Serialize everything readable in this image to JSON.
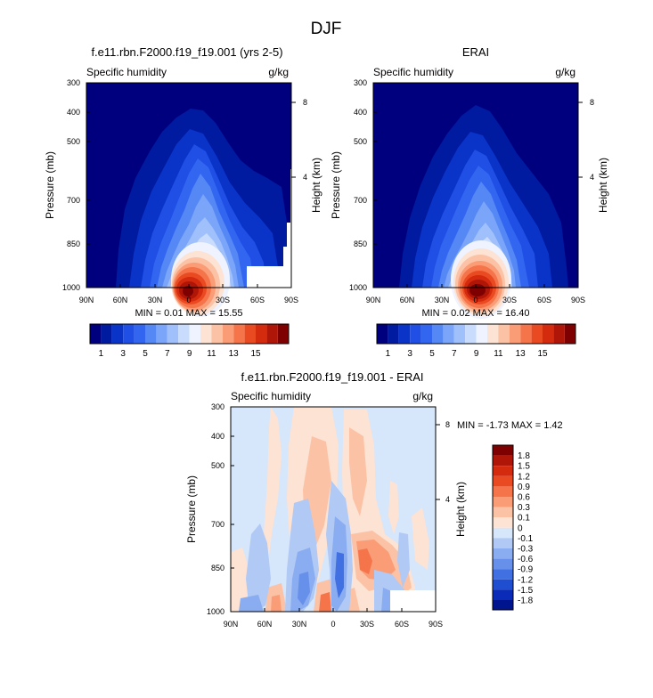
{
  "figure": {
    "title": "DJF"
  },
  "chart_data": [
    {
      "type": "heatmap",
      "title": "f.e11.rbn.F2000.f19_f19.001 (yrs 2-5)",
      "subtitle_left": "Specific humidity",
      "subtitle_right": "g/kg",
      "ylabel": "Pressure (mb)",
      "ylabel_right": "Height (km)",
      "x_ticks": [
        "90N",
        "60N",
        "30N",
        "0",
        "30S",
        "60S",
        "90S"
      ],
      "y_ticks": [
        "300",
        "400",
        "500",
        "700",
        "850",
        "1000"
      ],
      "y_right_ticks": [
        "8",
        "4"
      ],
      "ylim": [
        1000,
        300
      ],
      "stats": "MIN =  0.01  MAX = 15.55",
      "levels": [
        1,
        2,
        3,
        4,
        5,
        6,
        7,
        8,
        9,
        10,
        11,
        12,
        13,
        14,
        15
      ],
      "colorbar_labels": [
        "1",
        "3",
        "5",
        "7",
        "9",
        "11",
        "13",
        "15"
      ],
      "colors": [
        "#00007f",
        "#001aa0",
        "#0a33c8",
        "#1f4fe5",
        "#3366f0",
        "#5588f5",
        "#7aa5f8",
        "#a0c0fb",
        "#cadcfd",
        "#eef3ff",
        "#fde3d4",
        "#fcc2a6",
        "#fa9c76",
        "#f5744a",
        "#ea4a22",
        "#d42a0e",
        "#b01607",
        "#7f0000"
      ]
    },
    {
      "type": "heatmap",
      "title": "ERAI",
      "subtitle_left": "Specific humidity",
      "subtitle_right": "g/kg",
      "ylabel": "Pressure (mb)",
      "ylabel_right": "Height (km)",
      "x_ticks": [
        "90N",
        "60N",
        "30N",
        "0",
        "30S",
        "60S",
        "90S"
      ],
      "y_ticks": [
        "300",
        "400",
        "500",
        "700",
        "850",
        "1000"
      ],
      "y_right_ticks": [
        "8",
        "4"
      ],
      "ylim": [
        1000,
        300
      ],
      "stats": "MIN =  0.02  MAX = 16.40",
      "levels": [
        1,
        2,
        3,
        4,
        5,
        6,
        7,
        8,
        9,
        10,
        11,
        12,
        13,
        14,
        15
      ],
      "colorbar_labels": [
        "1",
        "3",
        "5",
        "7",
        "9",
        "11",
        "13",
        "15"
      ]
    },
    {
      "type": "heatmap",
      "title": "f.e11.rbn.F2000.f19_f19.001 - ERAI",
      "subtitle_left": "Specific humidity",
      "subtitle_right": "g/kg",
      "ylabel": "Pressure (mb)",
      "ylabel_right": "Height (km)",
      "x_ticks": [
        "90N",
        "60N",
        "30N",
        "0",
        "30S",
        "60S",
        "90S"
      ],
      "y_ticks": [
        "300",
        "400",
        "500",
        "700",
        "850",
        "1000"
      ],
      "y_right_ticks": [
        "8",
        "4"
      ],
      "ylim": [
        1000,
        300
      ],
      "stats": "MIN = -1.73  MAX =  1.42",
      "colorbar_labels": [
        "1.8",
        "1.5",
        "1.2",
        "0.9",
        "0.6",
        "0.3",
        "0.1",
        "0",
        "-0.1",
        "-0.3",
        "-0.6",
        "-0.9",
        "-1.2",
        "-1.5",
        "-1.8"
      ],
      "colors": [
        "#7f0000",
        "#b01607",
        "#d42a0e",
        "#ea4a22",
        "#f5744a",
        "#fa9c76",
        "#fcc2a6",
        "#fde3d4",
        "#d6e6fb",
        "#b0c9f5",
        "#8aacf0",
        "#6690ea",
        "#4070e2",
        "#1f4fd0",
        "#0a2ab8",
        "#001490"
      ]
    }
  ]
}
